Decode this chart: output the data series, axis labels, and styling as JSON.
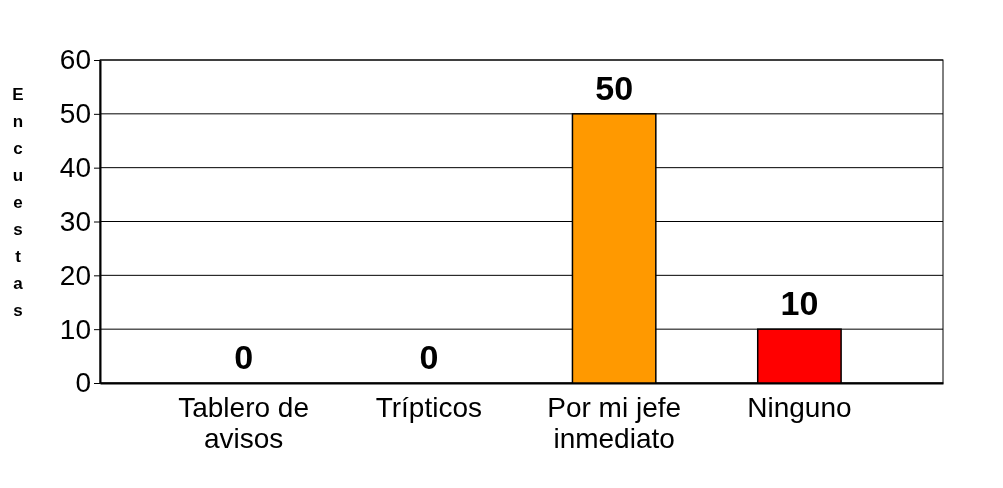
{
  "chart_data": {
    "type": "bar",
    "ylabel": "Encuestas",
    "categories": [
      "Tablero de avisos",
      "Trípticos",
      "Por mi jefe inmediato",
      "Ninguno"
    ],
    "values": [
      0,
      0,
      50,
      10
    ],
    "colors": [
      "#9966cc",
      "#660033",
      "#ff9900",
      "#ff0000"
    ],
    "ylim": [
      0,
      60
    ],
    "yticks": [
      0,
      10,
      20,
      30,
      40,
      50,
      60
    ],
    "grid": "y",
    "data_labels": true
  }
}
